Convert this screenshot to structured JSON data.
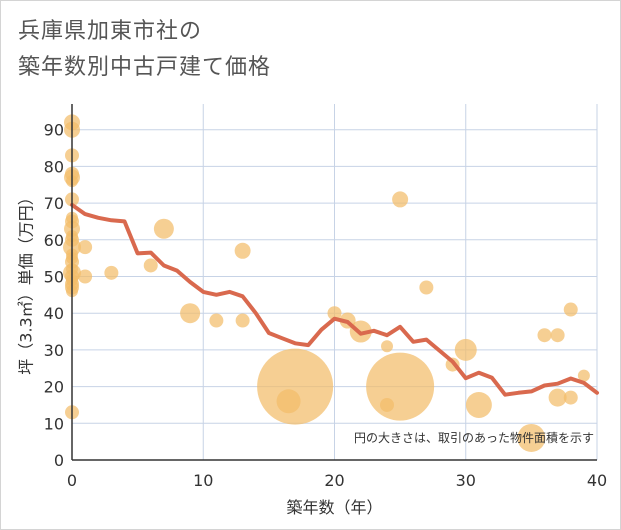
{
  "title": {
    "line1": "兵庫県加東市社の",
    "line2": "築年数別中古戸建て価格"
  },
  "colors": {
    "bubble": "#f3bd69",
    "line": "#d9694e",
    "grid": "#c7d3e6",
    "plot_bg": "#ffffff"
  },
  "chart_data": {
    "type": "scatter",
    "xlabel": "築年数（年）",
    "ylabel": "坪（3.3㎡）単価（万円）",
    "xlim": [
      0,
      40
    ],
    "ylim": [
      0,
      97
    ],
    "x_ticks": [
      "0",
      "10",
      "20",
      "30",
      "40"
    ],
    "y_ticks": [
      "0",
      "10",
      "20",
      "30",
      "40",
      "50",
      "60",
      "70",
      "80",
      "90"
    ],
    "grid": true,
    "annotation": "円の大きさは、取引のあった物件面積を示す",
    "scatter": [
      {
        "x": 0,
        "y": 92,
        "s": 8
      },
      {
        "x": 0,
        "y": 90,
        "s": 8
      },
      {
        "x": 0,
        "y": 83,
        "s": 7
      },
      {
        "x": 0,
        "y": 78,
        "s": 7
      },
      {
        "x": 0,
        "y": 77,
        "s": 8
      },
      {
        "x": 0,
        "y": 76,
        "s": 6
      },
      {
        "x": 0,
        "y": 71,
        "s": 7
      },
      {
        "x": 0,
        "y": 66,
        "s": 6
      },
      {
        "x": 0,
        "y": 65,
        "s": 7
      },
      {
        "x": 0,
        "y": 63,
        "s": 8
      },
      {
        "x": 0,
        "y": 61,
        "s": 6
      },
      {
        "x": 0,
        "y": 60,
        "s": 7
      },
      {
        "x": 0,
        "y": 58,
        "s": 9
      },
      {
        "x": 0,
        "y": 56,
        "s": 6
      },
      {
        "x": 0,
        "y": 55,
        "s": 6
      },
      {
        "x": 0,
        "y": 54,
        "s": 7
      },
      {
        "x": 0,
        "y": 52,
        "s": 6
      },
      {
        "x": 0,
        "y": 51,
        "s": 9
      },
      {
        "x": 0,
        "y": 50,
        "s": 7
      },
      {
        "x": 0,
        "y": 49,
        "s": 6
      },
      {
        "x": 0,
        "y": 48,
        "s": 7
      },
      {
        "x": 0,
        "y": 47,
        "s": 7
      },
      {
        "x": 0,
        "y": 46,
        "s": 6
      },
      {
        "x": 0,
        "y": 13,
        "s": 7
      },
      {
        "x": 1,
        "y": 58,
        "s": 7
      },
      {
        "x": 1,
        "y": 50,
        "s": 7
      },
      {
        "x": 3,
        "y": 51,
        "s": 7
      },
      {
        "x": 6,
        "y": 53,
        "s": 7
      },
      {
        "x": 7,
        "y": 63,
        "s": 10
      },
      {
        "x": 9,
        "y": 40,
        "s": 10
      },
      {
        "x": 11,
        "y": 38,
        "s": 7
      },
      {
        "x": 13,
        "y": 57,
        "s": 8
      },
      {
        "x": 13,
        "y": 38,
        "s": 7
      },
      {
        "x": 17,
        "y": 20,
        "s": 38
      },
      {
        "x": 16.5,
        "y": 16,
        "s": 12
      },
      {
        "x": 20,
        "y": 40,
        "s": 7
      },
      {
        "x": 21,
        "y": 38,
        "s": 8
      },
      {
        "x": 22,
        "y": 35,
        "s": 11
      },
      {
        "x": 24,
        "y": 31,
        "s": 6
      },
      {
        "x": 24,
        "y": 15,
        "s": 7
      },
      {
        "x": 25,
        "y": 71,
        "s": 8
      },
      {
        "x": 25,
        "y": 20,
        "s": 34
      },
      {
        "x": 27,
        "y": 47,
        "s": 7
      },
      {
        "x": 29,
        "y": 26,
        "s": 7
      },
      {
        "x": 30,
        "y": 30,
        "s": 11
      },
      {
        "x": 31,
        "y": 15,
        "s": 13
      },
      {
        "x": 35,
        "y": 6,
        "s": 14
      },
      {
        "x": 36,
        "y": 34,
        "s": 7
      },
      {
        "x": 37,
        "y": 34,
        "s": 7
      },
      {
        "x": 37,
        "y": 17,
        "s": 9
      },
      {
        "x": 38,
        "y": 41,
        "s": 7
      },
      {
        "x": 38,
        "y": 17,
        "s": 7
      },
      {
        "x": 39,
        "y": 23,
        "s": 6
      }
    ],
    "line": {
      "x": [
        0,
        1,
        2,
        3,
        4,
        5,
        6,
        7,
        8,
        9,
        10,
        11,
        12,
        13,
        14,
        15,
        16,
        17,
        18,
        19,
        20,
        21,
        22,
        23,
        24,
        25,
        26,
        27,
        28,
        29,
        30,
        31,
        32,
        33,
        34,
        35,
        36,
        37,
        38,
        39,
        40
      ],
      "y": [
        69.5,
        67,
        66,
        65.3,
        65,
        56.3,
        56.5,
        53,
        51.6,
        48.5,
        45.8,
        45,
        45.8,
        44.6,
        40,
        34.6,
        33.2,
        31.8,
        31.3,
        35.5,
        38.5,
        37.6,
        34.4,
        35.2,
        34,
        36.3,
        32.2,
        32.8,
        29.8,
        26.8,
        22.3,
        23.8,
        22.4,
        17.8,
        18.3,
        18.7,
        20.3,
        20.8,
        22.2,
        21,
        18.3
      ]
    }
  }
}
